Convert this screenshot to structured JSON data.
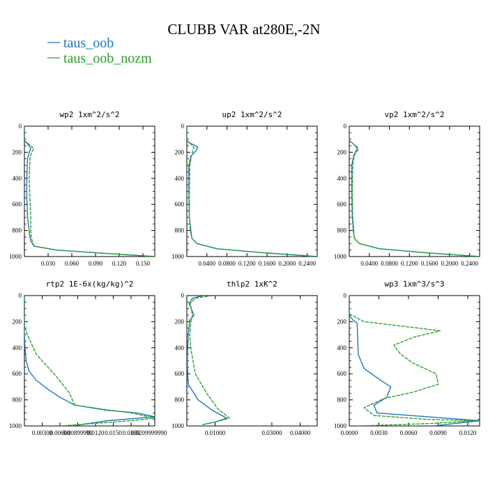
{
  "title": "CLUBB VAR at280E,-2N",
  "legend": {
    "position": "top-left",
    "entries": [
      {
        "label": "taus_oob",
        "color": "#1f77b4"
      },
      {
        "label": "taus_oob_nozm",
        "color": "#2ca02c"
      }
    ]
  },
  "chart_data": [
    {
      "type": "line",
      "title": "wp2   1xm^2/s^2",
      "xlim": [
        0,
        0.165
      ],
      "ylim": [
        1000,
        0
      ],
      "xticks": [
        0.03,
        0.06,
        0.09,
        0.12,
        0.15
      ],
      "xtick_labels": [
        "0.030",
        "0.060",
        "0.090",
        "0.120",
        "0.150"
      ],
      "yticks": [
        0,
        200,
        400,
        600,
        800,
        1000
      ],
      "ytick_labels": [
        "0",
        "200",
        "400",
        "600",
        "800",
        "1000"
      ],
      "series": [
        {
          "name": "taus_oob",
          "x": [
            0,
            0,
            0.003,
            0.006,
            0.008,
            0.006,
            0.004,
            0.003,
            0.003,
            0.004,
            0.006,
            0.007,
            0.008,
            0.012,
            0.04,
            0.1,
            0.165
          ],
          "y": [
            0,
            110,
            130,
            150,
            170,
            200,
            250,
            400,
            550,
            700,
            800,
            850,
            880,
            920,
            950,
            975,
            1000
          ]
        },
        {
          "name": "taus_oob_nozm",
          "x": [
            0,
            0,
            0.004,
            0.01,
            0.012,
            0.009,
            0.007,
            0.006,
            0.007,
            0.008,
            0.008,
            0.009,
            0.012,
            0.04,
            0.1,
            0.165
          ],
          "y": [
            0,
            110,
            130,
            160,
            175,
            200,
            250,
            400,
            550,
            700,
            800,
            860,
            920,
            950,
            975,
            1000
          ]
        }
      ]
    },
    {
      "type": "line",
      "title": "up2   1xm^2/s^2",
      "xlim": [
        0,
        0.26
      ],
      "ylim": [
        1000,
        0
      ],
      "xticks": [
        0.04,
        0.08,
        0.12,
        0.16,
        0.2,
        0.24
      ],
      "xtick_labels": [
        "0.0400",
        "0.0800",
        "0.1200",
        "0.1600",
        "0.2000",
        "0.2400"
      ],
      "yticks": [
        0,
        200,
        400,
        600,
        800,
        1000
      ],
      "ytick_labels": [
        "0",
        "200",
        "400",
        "600",
        "800",
        "1000"
      ],
      "series": [
        {
          "name": "taus_oob",
          "x": [
            0,
            0,
            0.004,
            0.012,
            0.022,
            0.018,
            0.008,
            0.004,
            0.004,
            0.005,
            0.008,
            0.01,
            0.02,
            0.06,
            0.15,
            0.26
          ],
          "y": [
            0,
            110,
            125,
            140,
            160,
            190,
            230,
            300,
            500,
            700,
            800,
            860,
            900,
            940,
            970,
            1000
          ]
        },
        {
          "name": "taus_oob_nozm",
          "x": [
            0,
            0,
            0.006,
            0.014,
            0.012,
            0.009,
            0.006,
            0.005,
            0.005,
            0.007,
            0.01,
            0.02,
            0.06,
            0.15,
            0.26
          ],
          "y": [
            0,
            110,
            130,
            160,
            190,
            230,
            300,
            500,
            700,
            800,
            860,
            900,
            940,
            970,
            1000
          ]
        }
      ]
    },
    {
      "type": "line",
      "title": "vp2   1xm^2/s^2",
      "xlim": [
        0,
        0.26
      ],
      "ylim": [
        1000,
        0
      ],
      "xticks": [
        0.04,
        0.08,
        0.12,
        0.16,
        0.2,
        0.24
      ],
      "xtick_labels": [
        "0.0400",
        "0.0800",
        "0.1200",
        "0.1600",
        "0.2000",
        "0.2400"
      ],
      "yticks": [
        0,
        200,
        400,
        600,
        800,
        1000
      ],
      "ytick_labels": [
        "0",
        "200",
        "400",
        "600",
        "800",
        "1000"
      ],
      "series": [
        {
          "name": "taus_oob",
          "x": [
            0,
            0,
            0.005,
            0.012,
            0.016,
            0.012,
            0.008,
            0.005,
            0.005,
            0.006,
            0.008,
            0.01,
            0.02,
            0.06,
            0.15,
            0.26
          ],
          "y": [
            0,
            110,
            125,
            150,
            170,
            200,
            240,
            300,
            500,
            700,
            800,
            860,
            900,
            940,
            970,
            1000
          ]
        },
        {
          "name": "taus_oob_nozm",
          "x": [
            0,
            0,
            0.006,
            0.016,
            0.018,
            0.013,
            0.009,
            0.007,
            0.006,
            0.007,
            0.009,
            0.01,
            0.02,
            0.06,
            0.15,
            0.26
          ],
          "y": [
            0,
            110,
            130,
            160,
            180,
            200,
            240,
            300,
            500,
            700,
            800,
            860,
            900,
            940,
            970,
            1000
          ]
        }
      ]
    },
    {
      "type": "line",
      "title": "rtp2   1E-6x(kg/kg)^2",
      "xlim": [
        0,
        0.022
      ],
      "ylim": [
        1000,
        0
      ],
      "xticks": [
        0.003,
        0.006,
        0.009,
        0.012,
        0.015,
        0.018,
        0.021
      ],
      "xtick_labels": [
        "0.00300",
        "0.00600",
        "0.00899999",
        "0.0120",
        "0.0150",
        "0.0180",
        "0.0209999990"
      ],
      "yticks": [
        0,
        200,
        400,
        600,
        800,
        1000
      ],
      "ytick_labels": [
        "0",
        "200",
        "400",
        "600",
        "800",
        "1000"
      ],
      "series": [
        {
          "name": "taus_oob",
          "x": [
            0,
            0,
            0.0001,
            0.0003,
            0.0008,
            0.002,
            0.004,
            0.006,
            0.0085,
            0.014,
            0.019,
            0.022,
            0.014,
            0.008
          ],
          "y": [
            0,
            300,
            400,
            500,
            580,
            650,
            720,
            780,
            840,
            880,
            900,
            930,
            960,
            1000
          ]
        },
        {
          "name": "taus_oob_nozm",
          "x": [
            0,
            0,
            0.0005,
            0.002,
            0.005,
            0.0075,
            0.0085,
            0.013,
            0.018,
            0.022,
            0.018,
            0.012,
            0.006
          ],
          "y": [
            0,
            230,
            300,
            450,
            600,
            740,
            840,
            870,
            900,
            940,
            960,
            980,
            1000
          ]
        }
      ]
    },
    {
      "type": "line",
      "title": "thlp2   1xK^2",
      "xlim": [
        0,
        0.046
      ],
      "ylim": [
        1000,
        0
      ],
      "xticks": [
        0.01,
        0.03,
        0.04
      ],
      "xtick_labels": [
        "0.01000",
        "0.03000",
        "0.04000"
      ],
      "yticks": [
        0,
        200,
        400,
        600,
        800,
        1000
      ],
      "ytick_labels": [
        "0",
        "200",
        "400",
        "600",
        "800",
        "1000"
      ],
      "series": [
        {
          "name": "taus_oob",
          "x": [
            0.006,
            0.002,
            0.0008,
            0.0025,
            0.001,
            0.0005,
            0.0002,
            0.0002,
            0.0005,
            0.004,
            0.009,
            0.014,
            0.01,
            0.0055
          ],
          "y": [
            0,
            20,
            60,
            150,
            190,
            300,
            450,
            550,
            680,
            800,
            880,
            940,
            970,
            990
          ]
        },
        {
          "name": "taus_oob_nozm",
          "x": [
            0.009,
            0.003,
            0.0012,
            0.002,
            0.0015,
            0.001,
            0.0015,
            0.003,
            0.007,
            0.011,
            0.015,
            0.01,
            0.0055
          ],
          "y": [
            0,
            20,
            60,
            150,
            190,
            300,
            420,
            600,
            750,
            870,
            940,
            970,
            990
          ]
        }
      ]
    },
    {
      "type": "line",
      "title": "wp3   1xm^3/s^3",
      "xlim": [
        0,
        0.0132
      ],
      "ylim": [
        1000,
        0
      ],
      "xticks": [
        0,
        0.003,
        0.006,
        0.009,
        0.012
      ],
      "xtick_labels": [
        "0.0000",
        "0.0030",
        "0.0060",
        "0.0090",
        "0.0120"
      ],
      "yticks": [
        0,
        200,
        400,
        600,
        800,
        1000
      ],
      "ytick_labels": [
        "0",
        "200",
        "400",
        "600",
        "800",
        "1000"
      ],
      "series": [
        {
          "name": "taus_oob",
          "x": [
            0,
            0,
            0.0004,
            0.0008,
            0.0009,
            0.0015,
            0.003,
            0.0042,
            0.0038,
            0.0025,
            0.0028,
            0.008,
            0.0132,
            0.0085
          ],
          "y": [
            0,
            150,
            190,
            210,
            450,
            560,
            640,
            700,
            780,
            840,
            900,
            930,
            960,
            1000
          ]
        },
        {
          "name": "taus_oob_nozm",
          "x": [
            0,
            0,
            0.0015,
            0.006,
            0.0092,
            0.0065,
            0.0045,
            0.0052,
            0.0065,
            0.0088,
            0.009,
            0.0065,
            0.0035,
            0.0015,
            0.0025,
            0.008,
            0.0128,
            0.0085,
            0.001
          ],
          "y": [
            0,
            140,
            200,
            240,
            270,
            320,
            380,
            450,
            520,
            600,
            680,
            740,
            790,
            860,
            920,
            950,
            960,
            980,
            1000
          ]
        }
      ]
    }
  ]
}
